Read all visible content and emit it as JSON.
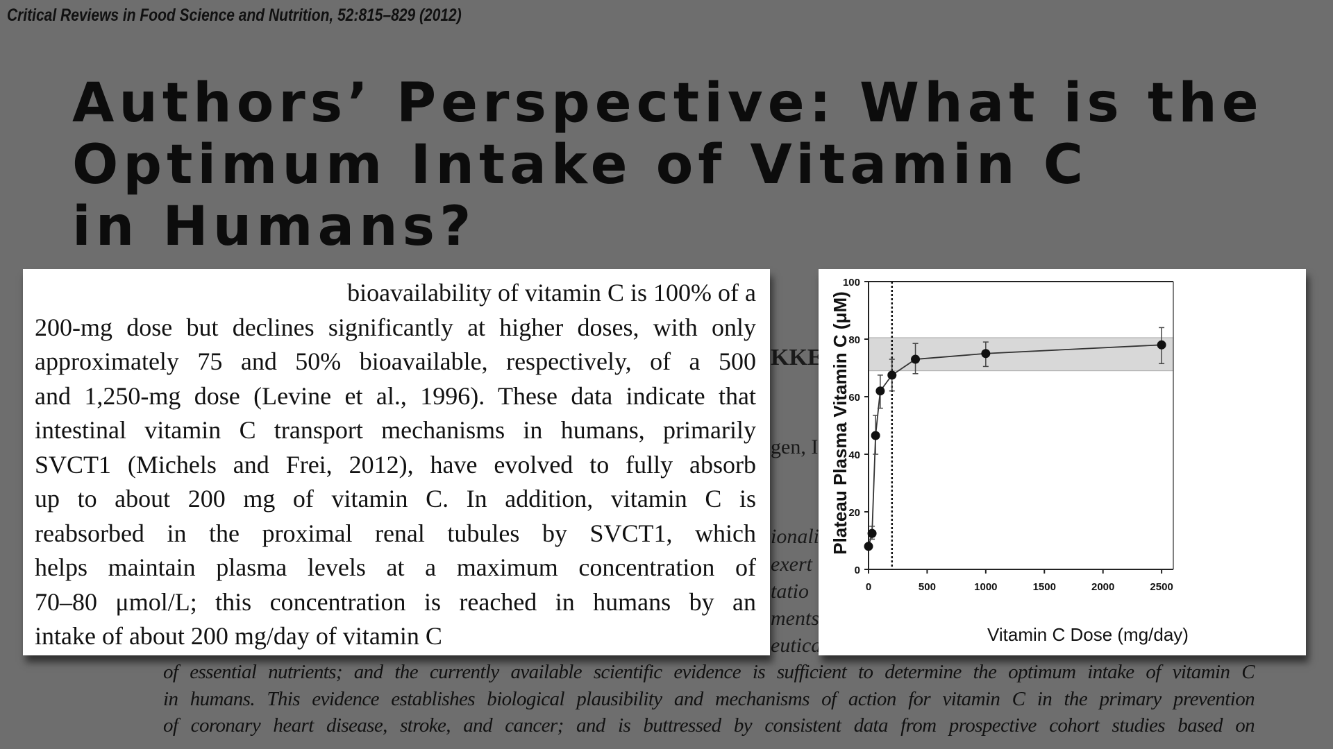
{
  "header": {
    "journal": "Critical Reviews in Food Science and Nutrition, 52:815–829 (2012)"
  },
  "title": {
    "lines": [
      "Authors’ Perspective: What is the",
      "Optimum Intake of Vitamin C",
      "in Humans?"
    ]
  },
  "background_fragments": [
    "KKE",
    "gen, I",
    "ionali",
    "exert",
    "tatio",
    "ments",
    "eutica"
  ],
  "excerpt": {
    "lines": [
      "bioavailability of vitamin C is 100% of a",
      "200-mg dose but declines significantly at higher doses, with only",
      "approximately 75 and 50% bioavailable, respectively, of a 500",
      "and 1,250-mg dose (Levine et al., 1996). These data indicate that",
      "intestinal vitamin C transport mechanisms in humans, primarily",
      "SVCT1 (Michels and Frei, 2012), have evolved to fully absorb",
      "up to about 200 mg of vitamin C. In addition, vitamin C is",
      "reabsorbed in the proximal renal tubules by SVCT1, which",
      "helps maintain plasma levels at a maximum concentration of",
      "70–80 μmol/L; this concentration is reached in humans by an",
      "intake of about 200 mg/day of vitamin C"
    ]
  },
  "abstract_lines": [
    "of essential nutrients; and the currently available scientific evidence is sufficient to determine the optimum intake of vitamin C",
    "in humans. This evidence establishes biological plausibility and mechanisms of action for vitamin C in the primary prevention",
    "of coronary heart disease, stroke, and cancer; and is buttressed by consistent data from prospective cohort studies based on"
  ],
  "chart_data": {
    "type": "line",
    "xlabel": "Vitamin C Dose (mg/day)",
    "ylabel": "Plateau Plasma Vitamin C (μM)",
    "xlim": [
      0,
      2600
    ],
    "ylim": [
      0,
      100
    ],
    "xticks": [
      "0",
      "500",
      "1000",
      "1500",
      "2000",
      "2500"
    ],
    "yticks": [
      "0",
      "20",
      "40",
      "60",
      "80",
      "100"
    ],
    "grid": false,
    "x": [
      0,
      30,
      60,
      100,
      200,
      400,
      1000,
      2500
    ],
    "y": [
      8,
      12.5,
      46.5,
      62,
      67.5,
      73,
      75,
      78
    ],
    "error_low": [
      8,
      10.5,
      40,
      56,
      62,
      68,
      70.5,
      71.5
    ],
    "error_high": [
      8,
      15,
      53.5,
      67.5,
      73,
      78.5,
      79,
      84
    ],
    "shaded_band_y": [
      69,
      80.5
    ],
    "dashed_vline_x": 200,
    "colors": {
      "line": "#333333",
      "band": "#d8d8d8",
      "marker": "#111111"
    }
  }
}
